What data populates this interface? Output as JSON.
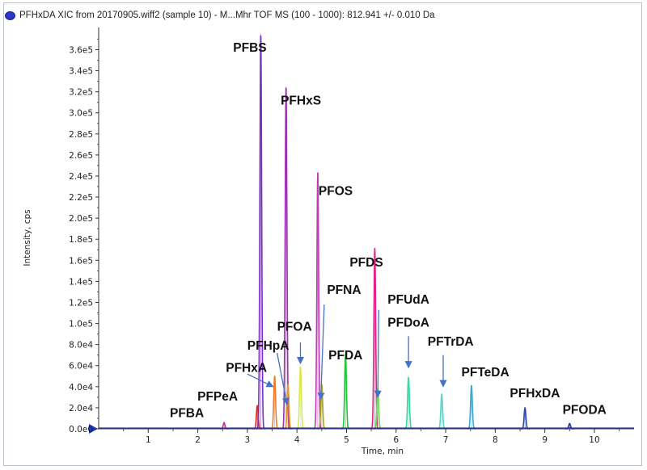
{
  "header": {
    "title": "PFHxDA XIC from 20170905.wiff2 (sample 10) - M...Mhr TOF MS (100 - 1000): 812.941 +/- 0.010 Da",
    "icon": "blue-dot-icon"
  },
  "chart_data": {
    "type": "line",
    "xlabel": "Time, min",
    "ylabel": "Intensity, cps",
    "xlim": [
      0,
      10.8
    ],
    "ylim": [
      0,
      378000
    ],
    "x_ticks": [
      1,
      2,
      3,
      4,
      5,
      6,
      7,
      8,
      9,
      10
    ],
    "x_tick_labels": [
      "1",
      "2",
      "3",
      "4",
      "5",
      "6",
      "7",
      "8",
      "9",
      "10"
    ],
    "y_ticks": [
      0,
      20000,
      40000,
      60000,
      80000,
      100000,
      120000,
      140000,
      160000,
      180000,
      200000,
      220000,
      240000,
      260000,
      280000,
      300000,
      320000,
      340000,
      360000
    ],
    "y_tick_labels": [
      "0.0e0",
      "2.0e4",
      "4.0e4",
      "6.0e4",
      "8.0e4",
      "1.0e5",
      "1.2e5",
      "1.4e5",
      "1.6e5",
      "1.8e5",
      "2.0e5",
      "2.2e5",
      "2.4e5",
      "2.6e5",
      "2.8e5",
      "3.0e5",
      "3.2e5",
      "3.4e5",
      "3.6e5"
    ],
    "grid": false,
    "peaks": [
      {
        "rt": 2.53,
        "height": 6000,
        "color": "#c23aa8"
      },
      {
        "rt": 3.2,
        "height": 22000,
        "color": "#e02828"
      },
      {
        "rt": 3.27,
        "height": 375000,
        "color": "#7a2fc2"
      },
      {
        "rt": 3.55,
        "height": 50000,
        "color": "#f07a2a"
      },
      {
        "rt": 3.78,
        "height": 325000,
        "color": "#9d2fb2"
      },
      {
        "rt": 3.82,
        "height": 42000,
        "color": "#e8962a"
      },
      {
        "rt": 4.07,
        "height": 59000,
        "color": "#d7e84a"
      },
      {
        "rt": 4.42,
        "height": 244000,
        "color": "#c03ab4"
      },
      {
        "rt": 4.5,
        "height": 42000,
        "color": "#a8a020"
      },
      {
        "rt": 4.98,
        "height": 71000,
        "color": "#22c43a"
      },
      {
        "rt": 5.57,
        "height": 172000,
        "color": "#e2208a"
      },
      {
        "rt": 5.63,
        "height": 38000,
        "color": "#6ad65a"
      },
      {
        "rt": 6.25,
        "height": 49000,
        "color": "#3ad6a2"
      },
      {
        "rt": 6.92,
        "height": 33000,
        "color": "#5ad6c6"
      },
      {
        "rt": 7.52,
        "height": 41000,
        "color": "#3aa8d6"
      },
      {
        "rt": 8.6,
        "height": 20000,
        "color": "#2a4ab2"
      },
      {
        "rt": 9.5,
        "height": 5000,
        "color": "#1a3ab2"
      }
    ],
    "annotations": [
      {
        "text": "PFBS",
        "x": 3.05,
        "y": 358000
      },
      {
        "text": "PFHxS",
        "x": 4.08,
        "y": 308000
      },
      {
        "text": "PFOS",
        "x": 4.78,
        "y": 222000
      },
      {
        "text": "PFDS",
        "x": 5.4,
        "y": 154000
      },
      {
        "text": "PFNA",
        "x": 4.95,
        "y": 128000
      },
      {
        "text": "PFUdA",
        "x": 6.25,
        "y": 119000
      },
      {
        "text": "PFOA",
        "x": 3.95,
        "y": 93000
      },
      {
        "text": "PFDoA",
        "x": 6.25,
        "y": 97000
      },
      {
        "text": "PFHpA",
        "x": 3.42,
        "y": 75000
      },
      {
        "text": "PFTrDA",
        "x": 7.1,
        "y": 79000
      },
      {
        "text": "PFDA",
        "x": 4.98,
        "y": 66000
      },
      {
        "text": "PFHxA",
        "x": 2.98,
        "y": 54000
      },
      {
        "text": "PFTeDA",
        "x": 7.8,
        "y": 50000
      },
      {
        "text": "PFPeA",
        "x": 2.4,
        "y": 27000
      },
      {
        "text": "PFHxDA",
        "x": 8.8,
        "y": 30000
      },
      {
        "text": "PFBA",
        "x": 1.78,
        "y": 11000
      },
      {
        "text": "PFODA",
        "x": 9.8,
        "y": 14000
      }
    ],
    "arrows": [
      {
        "from": [
          3.0,
          52000
        ],
        "to": [
          3.52,
          40000
        ]
      },
      {
        "from": [
          3.6,
          72000
        ],
        "to": [
          3.8,
          23000
        ]
      },
      {
        "from": [
          4.07,
          82000
        ],
        "to": [
          4.07,
          62000
        ]
      },
      {
        "from": [
          4.55,
          118000
        ],
        "to": [
          4.48,
          28000
        ]
      },
      {
        "from": [
          5.65,
          113000
        ],
        "to": [
          5.63,
          30000
        ]
      },
      {
        "from": [
          6.25,
          88000
        ],
        "to": [
          6.25,
          58000
        ]
      },
      {
        "from": [
          6.95,
          70000
        ],
        "to": [
          6.95,
          40000
        ]
      }
    ]
  }
}
